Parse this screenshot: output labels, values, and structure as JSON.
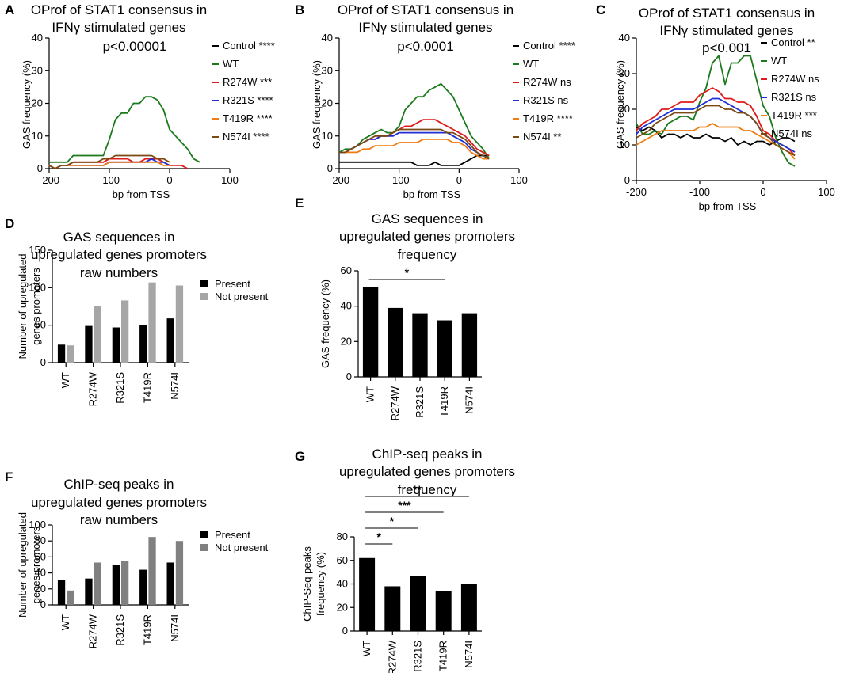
{
  "colors": {
    "Control": "#000000",
    "WT": "#1c7a1c",
    "R274W": "#e01b1b",
    "R321S": "#1f2ed6",
    "T419R": "#f07b12",
    "N574I": "#7a4a12",
    "present": "#000000",
    "not_present_D": "#a6a6a6",
    "not_present_F": "#808080",
    "bar": "#000000"
  },
  "chart_data": [
    {
      "id": "A",
      "type": "line",
      "title": [
        "OProf of STAT1 consensus in",
        "IFNγ stimulated genes"
      ],
      "pvalue": "p<0.00001",
      "xlabel": "bp from TSS",
      "ylabel": "GAS frequency (%)",
      "xlim": [
        -200,
        100
      ],
      "ylim": [
        0,
        40
      ],
      "xticks": [
        "-200",
        "-100",
        "0",
        "100"
      ],
      "yticks": [
        "0",
        "10",
        "20",
        "30",
        "40"
      ],
      "x": [
        -200,
        -190,
        -180,
        -170,
        -160,
        -150,
        -140,
        -130,
        -120,
        -110,
        -100,
        -90,
        -80,
        -70,
        -60,
        -50,
        -40,
        -30,
        -20,
        -10,
        0,
        10,
        20,
        30,
        40,
        50
      ],
      "series": [
        {
          "name": "Control",
          "label": "Control ****",
          "values": [
            null,
            null,
            null,
            null,
            null,
            null,
            null,
            null,
            null,
            null,
            null,
            null,
            null,
            null,
            null,
            null,
            null,
            null,
            null,
            null,
            null,
            null,
            null,
            null,
            null,
            null
          ]
        },
        {
          "name": "WT",
          "label": "WT",
          "values": [
            2,
            2,
            2,
            2,
            4,
            4,
            4,
            4,
            4,
            4,
            9,
            15,
            17,
            17,
            20,
            20,
            22,
            22,
            21,
            18,
            12,
            10,
            8,
            6,
            3,
            2
          ]
        },
        {
          "name": "R274W",
          "label": "R274W ***",
          "values": [
            1,
            0,
            1,
            1,
            2,
            2,
            2,
            2,
            2,
            2,
            3,
            3,
            3,
            3,
            2,
            2,
            3,
            3,
            3,
            2,
            1,
            1,
            1,
            0,
            null,
            null
          ]
        },
        {
          "name": "R321S",
          "label": "R321S ****",
          "values": [
            1,
            0,
            1,
            1,
            1,
            1,
            1,
            1,
            1,
            1,
            2,
            2,
            2,
            2,
            2,
            2,
            2,
            3,
            2,
            2,
            1,
            null,
            null,
            null,
            null,
            null
          ]
        },
        {
          "name": "T419R",
          "label": "T419R ****",
          "values": [
            1,
            0,
            1,
            1,
            1,
            1,
            1,
            1,
            1,
            1,
            2,
            2,
            2,
            2,
            2,
            2,
            2,
            2,
            2,
            1,
            1,
            null,
            null,
            null,
            null,
            null
          ]
        },
        {
          "name": "N574I",
          "label": "N574I ****",
          "values": [
            1,
            0,
            1,
            1,
            2,
            2,
            2,
            2,
            2,
            3,
            3,
            4,
            4,
            4,
            4,
            4,
            4,
            4,
            3,
            3,
            2,
            null,
            null,
            null,
            null,
            null
          ]
        }
      ]
    },
    {
      "id": "B",
      "type": "line",
      "title": [
        "OProf of STAT1 consensus in",
        "IFNγ stimulated genes"
      ],
      "pvalue": "p<0.0001",
      "xlabel": "bp from TSS",
      "ylabel": "GAS frequency (%)",
      "xlim": [
        -200,
        100
      ],
      "ylim": [
        0,
        40
      ],
      "xticks": [
        "-200",
        "-100",
        "0",
        "100"
      ],
      "yticks": [
        "0",
        "10",
        "20",
        "30",
        "40"
      ],
      "x": [
        -200,
        -190,
        -180,
        -170,
        -160,
        -150,
        -140,
        -130,
        -120,
        -110,
        -100,
        -90,
        -80,
        -70,
        -60,
        -50,
        -40,
        -30,
        -20,
        -10,
        0,
        10,
        20,
        30,
        40,
        50
      ],
      "series": [
        {
          "name": "Control",
          "label": "Control ****",
          "values": [
            2,
            2,
            2,
            2,
            2,
            2,
            2,
            2,
            2,
            2,
            2,
            2,
            2,
            1,
            1,
            1,
            2,
            1,
            1,
            1,
            1,
            2,
            3,
            4,
            4,
            4
          ]
        },
        {
          "name": "WT",
          "label": "WT",
          "values": [
            5,
            6,
            6,
            7,
            9,
            10,
            11,
            12,
            11,
            11,
            13,
            18,
            20,
            22,
            22,
            24,
            25,
            26,
            24,
            22,
            18,
            14,
            10,
            8,
            6,
            3
          ]
        },
        {
          "name": "R274W",
          "label": "R274W ns",
          "values": [
            5,
            5,
            6,
            7,
            8,
            9,
            9,
            10,
            10,
            11,
            12,
            13,
            13,
            14,
            15,
            15,
            15,
            14,
            13,
            12,
            11,
            10,
            8,
            6,
            5,
            4
          ]
        },
        {
          "name": "R321S",
          "label": "R321S ns",
          "values": [
            5,
            5,
            6,
            7,
            8,
            9,
            9,
            10,
            10,
            10,
            11,
            11,
            11,
            11,
            11,
            11,
            11,
            11,
            11,
            10,
            9,
            8,
            6,
            5,
            4,
            3
          ]
        },
        {
          "name": "T419R",
          "label": "T419R ****",
          "values": [
            5,
            5,
            5,
            5,
            6,
            6,
            7,
            7,
            7,
            7,
            8,
            8,
            8,
            8,
            9,
            9,
            9,
            9,
            9,
            8,
            8,
            7,
            5,
            4,
            3,
            3
          ]
        },
        {
          "name": "N574I",
          "label": "N574I **",
          "values": [
            5,
            5,
            6,
            7,
            8,
            9,
            10,
            10,
            10,
            11,
            12,
            12,
            12,
            12,
            12,
            12,
            12,
            12,
            11,
            11,
            10,
            9,
            7,
            5,
            4,
            3
          ]
        }
      ]
    },
    {
      "id": "C",
      "type": "line",
      "title": [
        "OProf of STAT1 consensus in",
        "IFNγ stimulated genes"
      ],
      "pvalue": "p<0.001",
      "xlabel": "bp from TSS",
      "ylabel": "GAS frequency (%)",
      "xlim": [
        -200,
        100
      ],
      "ylim": [
        0,
        40
      ],
      "xticks": [
        "-200",
        "-100",
        "0",
        "100"
      ],
      "yticks": [
        "0",
        "10",
        "20",
        "30",
        "40"
      ],
      "x": [
        -200,
        -190,
        -180,
        -170,
        -160,
        -150,
        -140,
        -130,
        -120,
        -110,
        -100,
        -90,
        -80,
        -70,
        -60,
        -50,
        -40,
        -30,
        -20,
        -10,
        0,
        10,
        20,
        30,
        40,
        50
      ],
      "series": [
        {
          "name": "Control",
          "label": "Control **",
          "values": [
            15,
            14,
            15,
            14,
            12,
            13,
            13,
            12,
            13,
            12,
            12,
            13,
            12,
            12,
            11,
            12,
            10,
            11,
            10,
            11,
            11,
            10,
            11,
            12,
            12,
            11
          ]
        },
        {
          "name": "WT",
          "label": "WT",
          "values": [
            16,
            13,
            13,
            14,
            13,
            16,
            17,
            18,
            18,
            17,
            22,
            26,
            33,
            35,
            27,
            33,
            33,
            35,
            35,
            28,
            21,
            18,
            12,
            8,
            5,
            4
          ]
        },
        {
          "name": "R274W",
          "label": "R274W ns",
          "values": [
            14,
            16,
            17,
            18,
            20,
            20,
            21,
            22,
            22,
            22,
            24,
            25,
            26,
            25,
            23,
            23,
            22,
            22,
            21,
            18,
            14,
            13,
            11,
            10,
            9,
            7
          ]
        },
        {
          "name": "R321S",
          "label": "R321S ns",
          "values": [
            13,
            15,
            16,
            17,
            18,
            19,
            20,
            20,
            20,
            20,
            21,
            22,
            23,
            23,
            22,
            21,
            20,
            19,
            18,
            16,
            13,
            12,
            11,
            10,
            9,
            8
          ]
        },
        {
          "name": "T419R",
          "label": "T419R ***",
          "values": [
            10,
            11,
            12,
            13,
            14,
            14,
            14,
            14,
            14,
            14,
            15,
            15,
            16,
            15,
            15,
            15,
            15,
            14,
            14,
            13,
            12,
            11,
            10,
            9,
            8,
            6
          ]
        },
        {
          "name": "N574I",
          "label": "N574I ns",
          "values": [
            12,
            13,
            14,
            16,
            17,
            18,
            19,
            19,
            19,
            19,
            20,
            21,
            21,
            21,
            20,
            20,
            19,
            19,
            18,
            16,
            13,
            12,
            10,
            9,
            8,
            7
          ]
        }
      ]
    },
    {
      "id": "D",
      "type": "bar",
      "title": [
        "GAS sequences in",
        "upregulated genes promoters",
        "raw numbers"
      ],
      "ylabel": [
        "Number of upregulated",
        "genes promoters"
      ],
      "ylim": [
        0,
        150
      ],
      "yticks": [
        "0",
        "50",
        "100",
        "150"
      ],
      "categories": [
        "WT",
        "R274W",
        "R321S",
        "T419R",
        "N574I"
      ],
      "series": [
        {
          "name": "Present",
          "values": [
            24,
            49,
            47,
            50,
            59
          ]
        },
        {
          "name": "Not present",
          "values": [
            23,
            76,
            83,
            107,
            103
          ]
        }
      ]
    },
    {
      "id": "E",
      "type": "bar",
      "title": [
        "GAS sequences in",
        "upregulated genes promoters",
        "frequency"
      ],
      "ylabel": [
        "GAS frequency (%)"
      ],
      "ylim": [
        0,
        60
      ],
      "yticks": [
        "0",
        "20",
        "40",
        "60"
      ],
      "categories": [
        "WT",
        "R274W",
        "R321S",
        "T419R",
        "N574I"
      ],
      "values": [
        51,
        39,
        36,
        32,
        36
      ],
      "significance": [
        {
          "from": 0,
          "to": 3,
          "label": "*"
        }
      ]
    },
    {
      "id": "F",
      "type": "bar",
      "title": [
        "ChIP-seq peaks in",
        "upregulated genes promoters",
        "raw numbers"
      ],
      "ylabel": [
        "Number of upregulated",
        "genes promoters"
      ],
      "ylim": [
        0,
        100
      ],
      "yticks": [
        "0",
        "20",
        "40",
        "60",
        "80",
        "100"
      ],
      "categories": [
        "WT",
        "R274W",
        "R321S",
        "T419R",
        "N574I"
      ],
      "series": [
        {
          "name": "Present",
          "values": [
            31,
            33,
            50,
            44,
            53
          ]
        },
        {
          "name": "Not present",
          "values": [
            18,
            53,
            55,
            85,
            80
          ]
        }
      ]
    },
    {
      "id": "G",
      "type": "bar",
      "title": [
        "ChIP-seq peaks in",
        "upregulated genes promoters",
        "frequency"
      ],
      "ylabel": [
        "ChIP-Seq peaks",
        "frequency (%)"
      ],
      "ylim": [
        0,
        80
      ],
      "yticks": [
        "0",
        "20",
        "40",
        "60",
        "80"
      ],
      "categories": [
        "WT",
        "R274W",
        "R321S",
        "T419R",
        "N574I"
      ],
      "values": [
        62,
        38,
        47,
        34,
        40
      ],
      "significance": [
        {
          "from": 0,
          "to": 1,
          "label": "*"
        },
        {
          "from": 0,
          "to": 2,
          "label": "*"
        },
        {
          "from": 0,
          "to": 3,
          "label": "***"
        },
        {
          "from": 0,
          "to": 4,
          "label": "**"
        }
      ]
    }
  ]
}
